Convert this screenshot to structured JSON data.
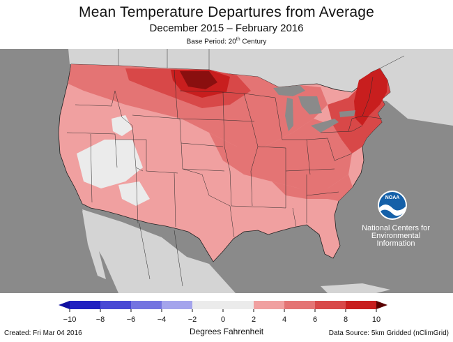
{
  "header": {
    "title": "Mean Temperature Departures from Average",
    "subtitle": "December 2015 – February 2016",
    "base_prefix": "Base Period: 20",
    "base_sup": "th",
    "base_suffix": " Century"
  },
  "agency": {
    "logo_text": "NOAA",
    "line1": "National Centers for",
    "line2": "Environmental",
    "line3": "Information"
  },
  "legend": {
    "units": "Degrees Fahrenheit",
    "ticks": [
      "−10",
      "−8",
      "−6",
      "−4",
      "−2",
      "0",
      "2",
      "4",
      "6",
      "8",
      "10"
    ],
    "bins": [
      {
        "range": [
          -10,
          -8
        ],
        "color": "#2020c0"
      },
      {
        "range": [
          -8,
          -6
        ],
        "color": "#4848d4"
      },
      {
        "range": [
          -6,
          -4
        ],
        "color": "#7474e0"
      },
      {
        "range": [
          -4,
          -2
        ],
        "color": "#a4a4ec"
      },
      {
        "range": [
          -2,
          0
        ],
        "color": "#ebebeb"
      },
      {
        "range": [
          0,
          2
        ],
        "color": "#ebebeb"
      },
      {
        "range": [
          2,
          4
        ],
        "color": "#f0a0a0"
      },
      {
        "range": [
          4,
          6
        ],
        "color": "#e47474"
      },
      {
        "range": [
          6,
          8
        ],
        "color": "#d84848"
      },
      {
        "range": [
          8,
          10
        ],
        "color": "#c81e1e"
      }
    ],
    "low_arrow_color": "#1010a0",
    "high_arrow_color": "#5a0000"
  },
  "footer": {
    "created": "Created: Fri Mar 04 2016",
    "source": "Data Source: 5km Gridded (nClimGrid)"
  },
  "colors": {
    "ocean": "#8a8a8a",
    "land_outside": "#d4d4d4",
    "lakes": "#8a8a8a",
    "noaa_blue": "#1560a8"
  }
}
